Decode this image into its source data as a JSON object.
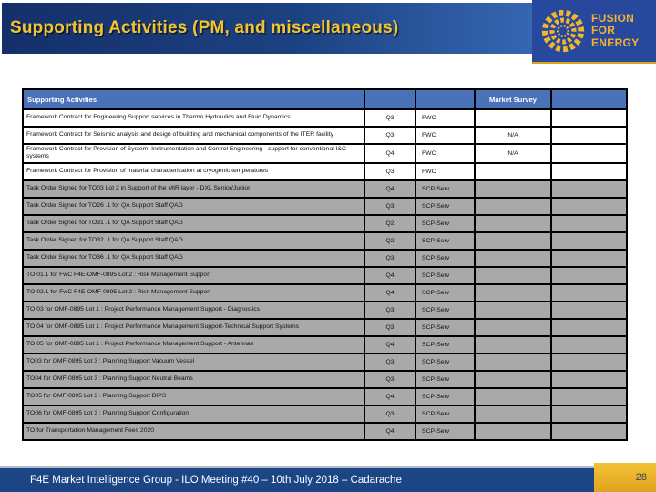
{
  "slide": {
    "title": "Supporting Activities (PM, and miscellaneous)",
    "footer": "F4E Market Intelligence Group - ILO Meeting #40 – 10th July 2018 – Cadarache",
    "page_number": "28"
  },
  "logo": {
    "icon": "fusion-for-energy-rosette-icon",
    "line1": "FUSION",
    "line2": "FOR",
    "line3": "ENERGY"
  },
  "colors": {
    "title_text_gold": "#f4c430",
    "title_bar_blue_left": "#14306a",
    "title_bar_blue_right": "#3566b2",
    "logo_block_blue": "#27489c",
    "table_header_blue": "#4a72b8",
    "shaded_row_gray": "#a9a9a9",
    "footer_bar_blue": "#1b4585",
    "page_box_gold": "#e3a81c"
  },
  "table": {
    "header": {
      "col1": "Supporting Activities",
      "col2": "",
      "col3": "",
      "col4": "Market Survey",
      "col5": ""
    },
    "rows": [
      {
        "description": "Framework Contract for Engineering Support services in Thermo Hydraulics and Fluid Dynamics",
        "quarter": "Q3",
        "type": "FWC",
        "market_survey": "",
        "shaded": false
      },
      {
        "description": "Framework Contract for Seismic analysis and design of building and mechanical components of the ITER facility",
        "quarter": "Q3",
        "type": "FWC",
        "market_survey": "N/A",
        "shaded": false
      },
      {
        "description": "Framework Contract for Provision of System, Instrumentation and Control Engineering - support for conventional I&C systems",
        "quarter": "Q4",
        "type": "FWC",
        "market_survey": "N/A",
        "shaded": false
      },
      {
        "description": "Framework Contract for Provision of material characterization at cryogenic temperatures",
        "quarter": "Q3",
        "type": "FWC",
        "market_survey": "",
        "shaded": false
      },
      {
        "description": "Task Order Signed for TO03 Lot 2 in Support of the MIR layer - DXL Senior/Junior",
        "quarter": "Q4",
        "type": "SCP-Serv",
        "market_survey": "",
        "shaded": true
      },
      {
        "description": "Task Order Signed for TO26 .1 for QA Support Staff QAG",
        "quarter": "Q3",
        "type": "SCP-Serv",
        "market_survey": "",
        "shaded": true
      },
      {
        "description": "Task Order Signed for TO31 .1 for QA Support Staff QAG",
        "quarter": "Q2",
        "type": "SCP-Serv",
        "market_survey": "",
        "shaded": true
      },
      {
        "description": "Task Order Signed for TO32 .1 for QA Support Staff QAG",
        "quarter": "Q2",
        "type": "SCP-Serv",
        "market_survey": "",
        "shaded": true
      },
      {
        "description": "Task Order Signed for TO36 .1 for QA Support Staff QAG",
        "quarter": "Q3",
        "type": "SCP-Serv",
        "market_survey": "",
        "shaded": true
      },
      {
        "description": "TO 01.1 for FwC F4E-OMF-0895 Lot 2 : Risk Management Support",
        "quarter": "Q4",
        "type": "SCP-Serv",
        "market_survey": "",
        "shaded": true
      },
      {
        "description": "TO 02.1 for FwC F4E-OMF-0895 Lot 2 : Risk Management Support",
        "quarter": "Q4",
        "type": "SCP-Serv",
        "market_survey": "",
        "shaded": true
      },
      {
        "description": "TO 03 for OMF-0895 Lot 1 : Project Performance Management Support - Diagnostics",
        "quarter": "Q3",
        "type": "SCP-Serv",
        "market_survey": "",
        "shaded": true
      },
      {
        "description": "TO 04 for OMF-0895 Lot 1 : Project Performance Management Support-Technical Support Systems",
        "quarter": "Q3",
        "type": "SCP-Serv",
        "market_survey": "",
        "shaded": true
      },
      {
        "description": "TO 05 for OMF-0895 Lot 1 : Project Performance Management Support - Antennas",
        "quarter": "Q4",
        "type": "SCP-Serv",
        "market_survey": "",
        "shaded": true
      },
      {
        "description": "TO03 for OMF-0895 Lot 3 : Planning Support Vacuum Vessel",
        "quarter": "Q3",
        "type": "SCP-Serv",
        "market_survey": "",
        "shaded": true
      },
      {
        "description": "TO04 for OMF-0895 Lot 3 : Planning Support Neutral Beams",
        "quarter": "Q3",
        "type": "SCP-Serv",
        "market_survey": "",
        "shaded": true
      },
      {
        "description": "TO05 for OMF-0895 Lot 3 : Planning Support BIPS",
        "quarter": "Q4",
        "type": "SCP-Serv",
        "market_survey": "",
        "shaded": true
      },
      {
        "description": "TO06 for OMF-0895 Lot 3 : Planning Support Configuration",
        "quarter": "Q3",
        "type": "SCP-Serv",
        "market_survey": "",
        "shaded": true
      },
      {
        "description": "TO for Transportation Management Fees 2020",
        "quarter": "Q4",
        "type": "SCP-Serv",
        "market_survey": "",
        "shaded": true
      }
    ]
  }
}
